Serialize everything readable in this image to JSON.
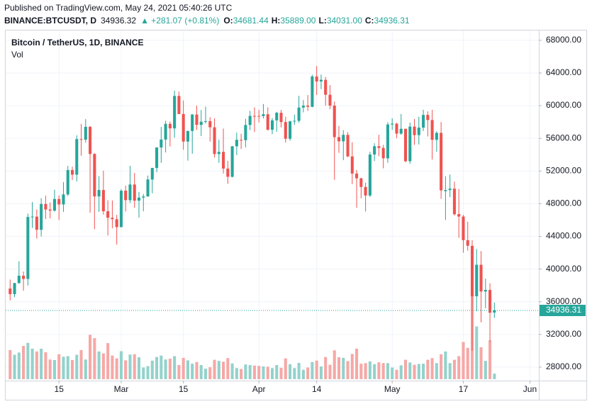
{
  "header": {
    "published": "Published on TradingView.com, May 24, 2021 05:40:26 UTC",
    "symbol": "BINANCE:BTCUSDT, D",
    "price": "34936.32",
    "change": "▲ +281.07 (+0.81%)",
    "ohlc": [
      {
        "key": "O:",
        "value": "34681.44"
      },
      {
        "key": "H:",
        "value": "35889.00"
      },
      {
        "key": "L:",
        "value": "34031.00"
      },
      {
        "key": "C:",
        "value": "34936.31"
      }
    ]
  },
  "chart_data": {
    "type": "candlestick",
    "title": "Bitcoin / TetherUS, 1D, BINANCE",
    "volume_label": "Vol",
    "up_color": "#26a69a",
    "down_color": "#ef5350",
    "volume_up_color": "#93d2cb",
    "volume_down_color": "#f6a8a6",
    "categories": [
      "2021-02-04",
      "2021-02-05",
      "2021-02-06",
      "2021-02-07",
      "2021-02-08",
      "2021-02-09",
      "2021-02-10",
      "2021-02-11",
      "2021-02-12",
      "2021-02-13",
      "2021-02-14",
      "2021-02-15",
      "2021-02-16",
      "2021-02-17",
      "2021-02-18",
      "2021-02-19",
      "2021-02-20",
      "2021-02-21",
      "2021-02-22",
      "2021-02-23",
      "2021-02-24",
      "2021-02-25",
      "2021-02-26",
      "2021-02-27",
      "2021-02-28",
      "2021-03-01",
      "2021-03-02",
      "2021-03-03",
      "2021-03-04",
      "2021-03-05",
      "2021-03-06",
      "2021-03-07",
      "2021-03-08",
      "2021-03-09",
      "2021-03-10",
      "2021-03-11",
      "2021-03-12",
      "2021-03-13",
      "2021-03-14",
      "2021-03-15",
      "2021-03-16",
      "2021-03-17",
      "2021-03-18",
      "2021-03-19",
      "2021-03-20",
      "2021-03-21",
      "2021-03-22",
      "2021-03-23",
      "2021-03-24",
      "2021-03-25",
      "2021-03-26",
      "2021-03-27",
      "2021-03-28",
      "2021-03-29",
      "2021-03-30",
      "2021-03-31",
      "2021-04-01",
      "2021-04-02",
      "2021-04-03",
      "2021-04-04",
      "2021-04-05",
      "2021-04-06",
      "2021-04-07",
      "2021-04-08",
      "2021-04-09",
      "2021-04-10",
      "2021-04-11",
      "2021-04-12",
      "2021-04-13",
      "2021-04-14",
      "2021-04-15",
      "2021-04-16",
      "2021-04-17",
      "2021-04-18",
      "2021-04-19",
      "2021-04-20",
      "2021-04-21",
      "2021-04-22",
      "2021-04-23",
      "2021-04-24",
      "2021-04-25",
      "2021-04-26",
      "2021-04-27",
      "2021-04-28",
      "2021-04-29",
      "2021-04-30",
      "2021-05-01",
      "2021-05-02",
      "2021-05-03",
      "2021-05-04",
      "2021-05-05",
      "2021-05-06",
      "2021-05-07",
      "2021-05-08",
      "2021-05-09",
      "2021-05-10",
      "2021-05-11",
      "2021-05-12",
      "2021-05-13",
      "2021-05-14",
      "2021-05-15",
      "2021-05-16",
      "2021-05-17",
      "2021-05-18",
      "2021-05-19",
      "2021-05-20",
      "2021-05-21",
      "2021-05-22",
      "2021-05-23",
      "2021-05-24"
    ],
    "open": [
      37620,
      36936,
      38290,
      39186,
      38795,
      46374,
      46420,
      44807,
      47969,
      47288,
      47153,
      48577,
      47911,
      49133,
      52118,
      51553,
      55906,
      55841,
      57412,
      54087,
      48891,
      49676,
      47073,
      46277,
      46104,
      45134,
      49596,
      48436,
      50349,
      48375,
      48747,
      48882,
      50959,
      52376,
      54874,
      55851,
      57773,
      57221,
      61188,
      58976,
      55605,
      56900,
      58912,
      57641,
      58030,
      58101,
      57352,
      54083,
      54342,
      52303,
      51293,
      55025,
      55817,
      55777,
      57635,
      58746,
      58739,
      58720,
      58950,
      57051,
      58202,
      59129,
      57991,
      55953,
      58077,
      58142,
      59770,
      60007,
      59860,
      63576,
      62959,
      63159,
      61334,
      60006,
      56150,
      55634,
      56425,
      53787,
      51690,
      51110,
      50047,
      49004,
      54021,
      55033,
      54824,
      53555,
      57697,
      57797,
      56578,
      57169,
      53200,
      57437,
      56393,
      57315,
      58866,
      58240,
      55816,
      56670,
      49537,
      49672,
      49841,
      46727,
      46427,
      43538,
      42850,
      36671,
      40526,
      37253,
      37449,
      34681.44
    ],
    "high": [
      38708,
      38310,
      40955,
      39700,
      46794,
      48200,
      47310,
      48678,
      48985,
      48150,
      49707,
      49010,
      50645,
      52618,
      52530,
      56368,
      57767,
      58352,
      57508,
      54183,
      51374,
      52041,
      48424,
      48394,
      46638,
      49790,
      50200,
      52640,
      51773,
      49448,
      49200,
      51450,
      52402,
      54900,
      57387,
      58150,
      58058,
      61844,
      61724,
      60633,
      56934,
      58981,
      60000,
      59468,
      59880,
      58592,
      58430,
      55830,
      57200,
      53237,
      55073,
      56700,
      56559,
      58400,
      59368,
      59800,
      59490,
      60200,
      59791,
      58492,
      59251,
      59474,
      58650,
      58153,
      58894,
      61200,
      60680,
      61300,
      63777,
      64854,
      63800,
      63520,
      62506,
      60499,
      57526,
      57000,
      56757,
      55521,
      52130,
      51166,
      50567,
      54356,
      55400,
      56428,
      55195,
      57963,
      58458,
      57911,
      58981,
      57200,
      57939,
      58360,
      58650,
      59500,
      59300,
      59500,
      56862,
      58000,
      51367,
      51560,
      50700,
      49800,
      46643,
      45800,
      43546,
      42451,
      42200,
      38829,
      38270,
      35889
    ],
    "low": [
      36161,
      36570,
      38215,
      37351,
      37988,
      45020,
      43727,
      43994,
      46125,
      46202,
      47015,
      46000,
      47003,
      48947,
      50901,
      50710,
      53863,
      55477,
      46900,
      44892,
      47003,
      46674,
      44106,
      45000,
      43000,
      45115,
      47047,
      48100,
      47500,
      46300,
      47070,
      48882,
      49274,
      51845,
      53005,
      54272,
      55013,
      56078,
      58967,
      54600,
      53271,
      54120,
      57023,
      56270,
      57820,
      55600,
      53650,
      53000,
      51700,
      50427,
      51214,
      53950,
      54691,
      54900,
      57000,
      56769,
      57935,
      58428,
      56955,
      56500,
      56800,
      57333,
      55473,
      55700,
      57654,
      57900,
      59176,
      59360,
      59800,
      61301,
      62020,
      60000,
      59580,
      50931,
      54221,
      53329,
      53695,
      50400,
      47500,
      48657,
      47044,
      48817,
      53222,
      53813,
      52330,
      53013,
      57034,
      56035,
      56435,
      53057,
      52900,
      55200,
      55241,
      56900,
      56235,
      53400,
      54370,
      48600,
      46000,
      48805,
      46555,
      43825,
      42001,
      42250,
      30000,
      34850,
      33488,
      35200,
      31111,
      34031
    ],
    "close": [
      36936,
      38290,
      39186,
      38795,
      46374,
      46420,
      44807,
      47969,
      47287,
      47153,
      48577,
      47911,
      49133,
      52119,
      51553,
      55906,
      55841,
      57408,
      54087,
      48891,
      49676,
      47073,
      46277,
      46106,
      45135,
      49587,
      48440,
      50349,
      48374,
      48751,
      48882,
      50971,
      52375,
      54884,
      55851,
      57773,
      57221,
      61188,
      58968,
      55605,
      56900,
      58912,
      57648,
      58030,
      58102,
      57351,
      54083,
      54340,
      52303,
      51293,
      55025,
      55817,
      55777,
      57635,
      58746,
      58740,
      58720,
      58950,
      57051,
      58202,
      59129,
      57991,
      55953,
      58077,
      58142,
      59769,
      60007,
      59861,
      63575,
      62959,
      63159,
      61334,
      60006,
      56150,
      55633,
      56425,
      53787,
      51690,
      51110,
      50050,
      49004,
      54022,
      55033,
      54824,
      53555,
      57694,
      57800,
      56578,
      57170,
      53200,
      57436,
      56393,
      57314,
      58862,
      58240,
      55816,
      56670,
      49631,
      49670,
      49841,
      46709,
      46427,
      43538,
      42850,
      36671,
      40526,
      37252,
      37449,
      34655,
      34936.31
    ],
    "volume": [
      105000,
      88000,
      96000,
      120000,
      131000,
      110000,
      100000,
      110000,
      97000,
      71000,
      69000,
      90000,
      81000,
      83000,
      69000,
      88000,
      105000,
      71000,
      160000,
      148000,
      100000,
      93000,
      130000,
      85000,
      75000,
      101000,
      68000,
      89000,
      90000,
      79000,
      42000,
      47000,
      67000,
      80000,
      85000,
      71000,
      74000,
      83000,
      51000,
      77000,
      68000,
      56000,
      62000,
      51000,
      38000,
      43000,
      70000,
      66000,
      63000,
      76000,
      57000,
      40000,
      37000,
      53000,
      51000,
      49000,
      48000,
      46000,
      45000,
      40000,
      51000,
      41000,
      75000,
      54000,
      40000,
      59000,
      34000,
      42000,
      62000,
      67000,
      46000,
      80000,
      52000,
      104000,
      79000,
      77000,
      65000,
      91000,
      110000,
      56000,
      58000,
      64000,
      54000,
      61000,
      58000,
      58000,
      42000,
      34000,
      50000,
      70000,
      60000,
      52000,
      55000,
      56000,
      70000,
      76000,
      58000,
      90000,
      100000,
      58000,
      70000,
      83000,
      134000,
      113000,
      350000,
      190000,
      115000,
      66000,
      140000,
      20000
    ],
    "xlim": [
      "2021-02-03",
      "2021-06-03"
    ],
    "xticks": [
      {
        "value": "2021-02-15",
        "label": "15"
      },
      {
        "value": "2021-03-01",
        "label": "Mar"
      },
      {
        "value": "2021-03-15",
        "label": "15"
      },
      {
        "value": "2021-04-01",
        "label": "Apr"
      },
      {
        "value": "2021-04-14",
        "label": "14"
      },
      {
        "value": "2021-05-01",
        "label": "May"
      },
      {
        "value": "2021-05-17",
        "label": "17"
      },
      {
        "value": "2021-06-01",
        "label": "Jun"
      }
    ],
    "ylim": [
      26350,
      69200
    ],
    "yticks": [
      {
        "value": 28000,
        "label": "28000.00"
      },
      {
        "value": 32000,
        "label": "32000.00"
      },
      {
        "value": 36000,
        "label": "36000.00"
      },
      {
        "value": 40000,
        "label": "40000.00"
      },
      {
        "value": 44000,
        "label": "44000.00"
      },
      {
        "value": 48000,
        "label": "48000.00"
      },
      {
        "value": 52000,
        "label": "52000.00"
      },
      {
        "value": 56000,
        "label": "56000.00"
      },
      {
        "value": 60000,
        "label": "60000.00"
      },
      {
        "value": 64000,
        "label": "64000.00"
      },
      {
        "value": 68000,
        "label": "68000.00"
      }
    ],
    "last_price": {
      "value": 34936.31,
      "label": "34936.31"
    },
    "grid": true
  }
}
